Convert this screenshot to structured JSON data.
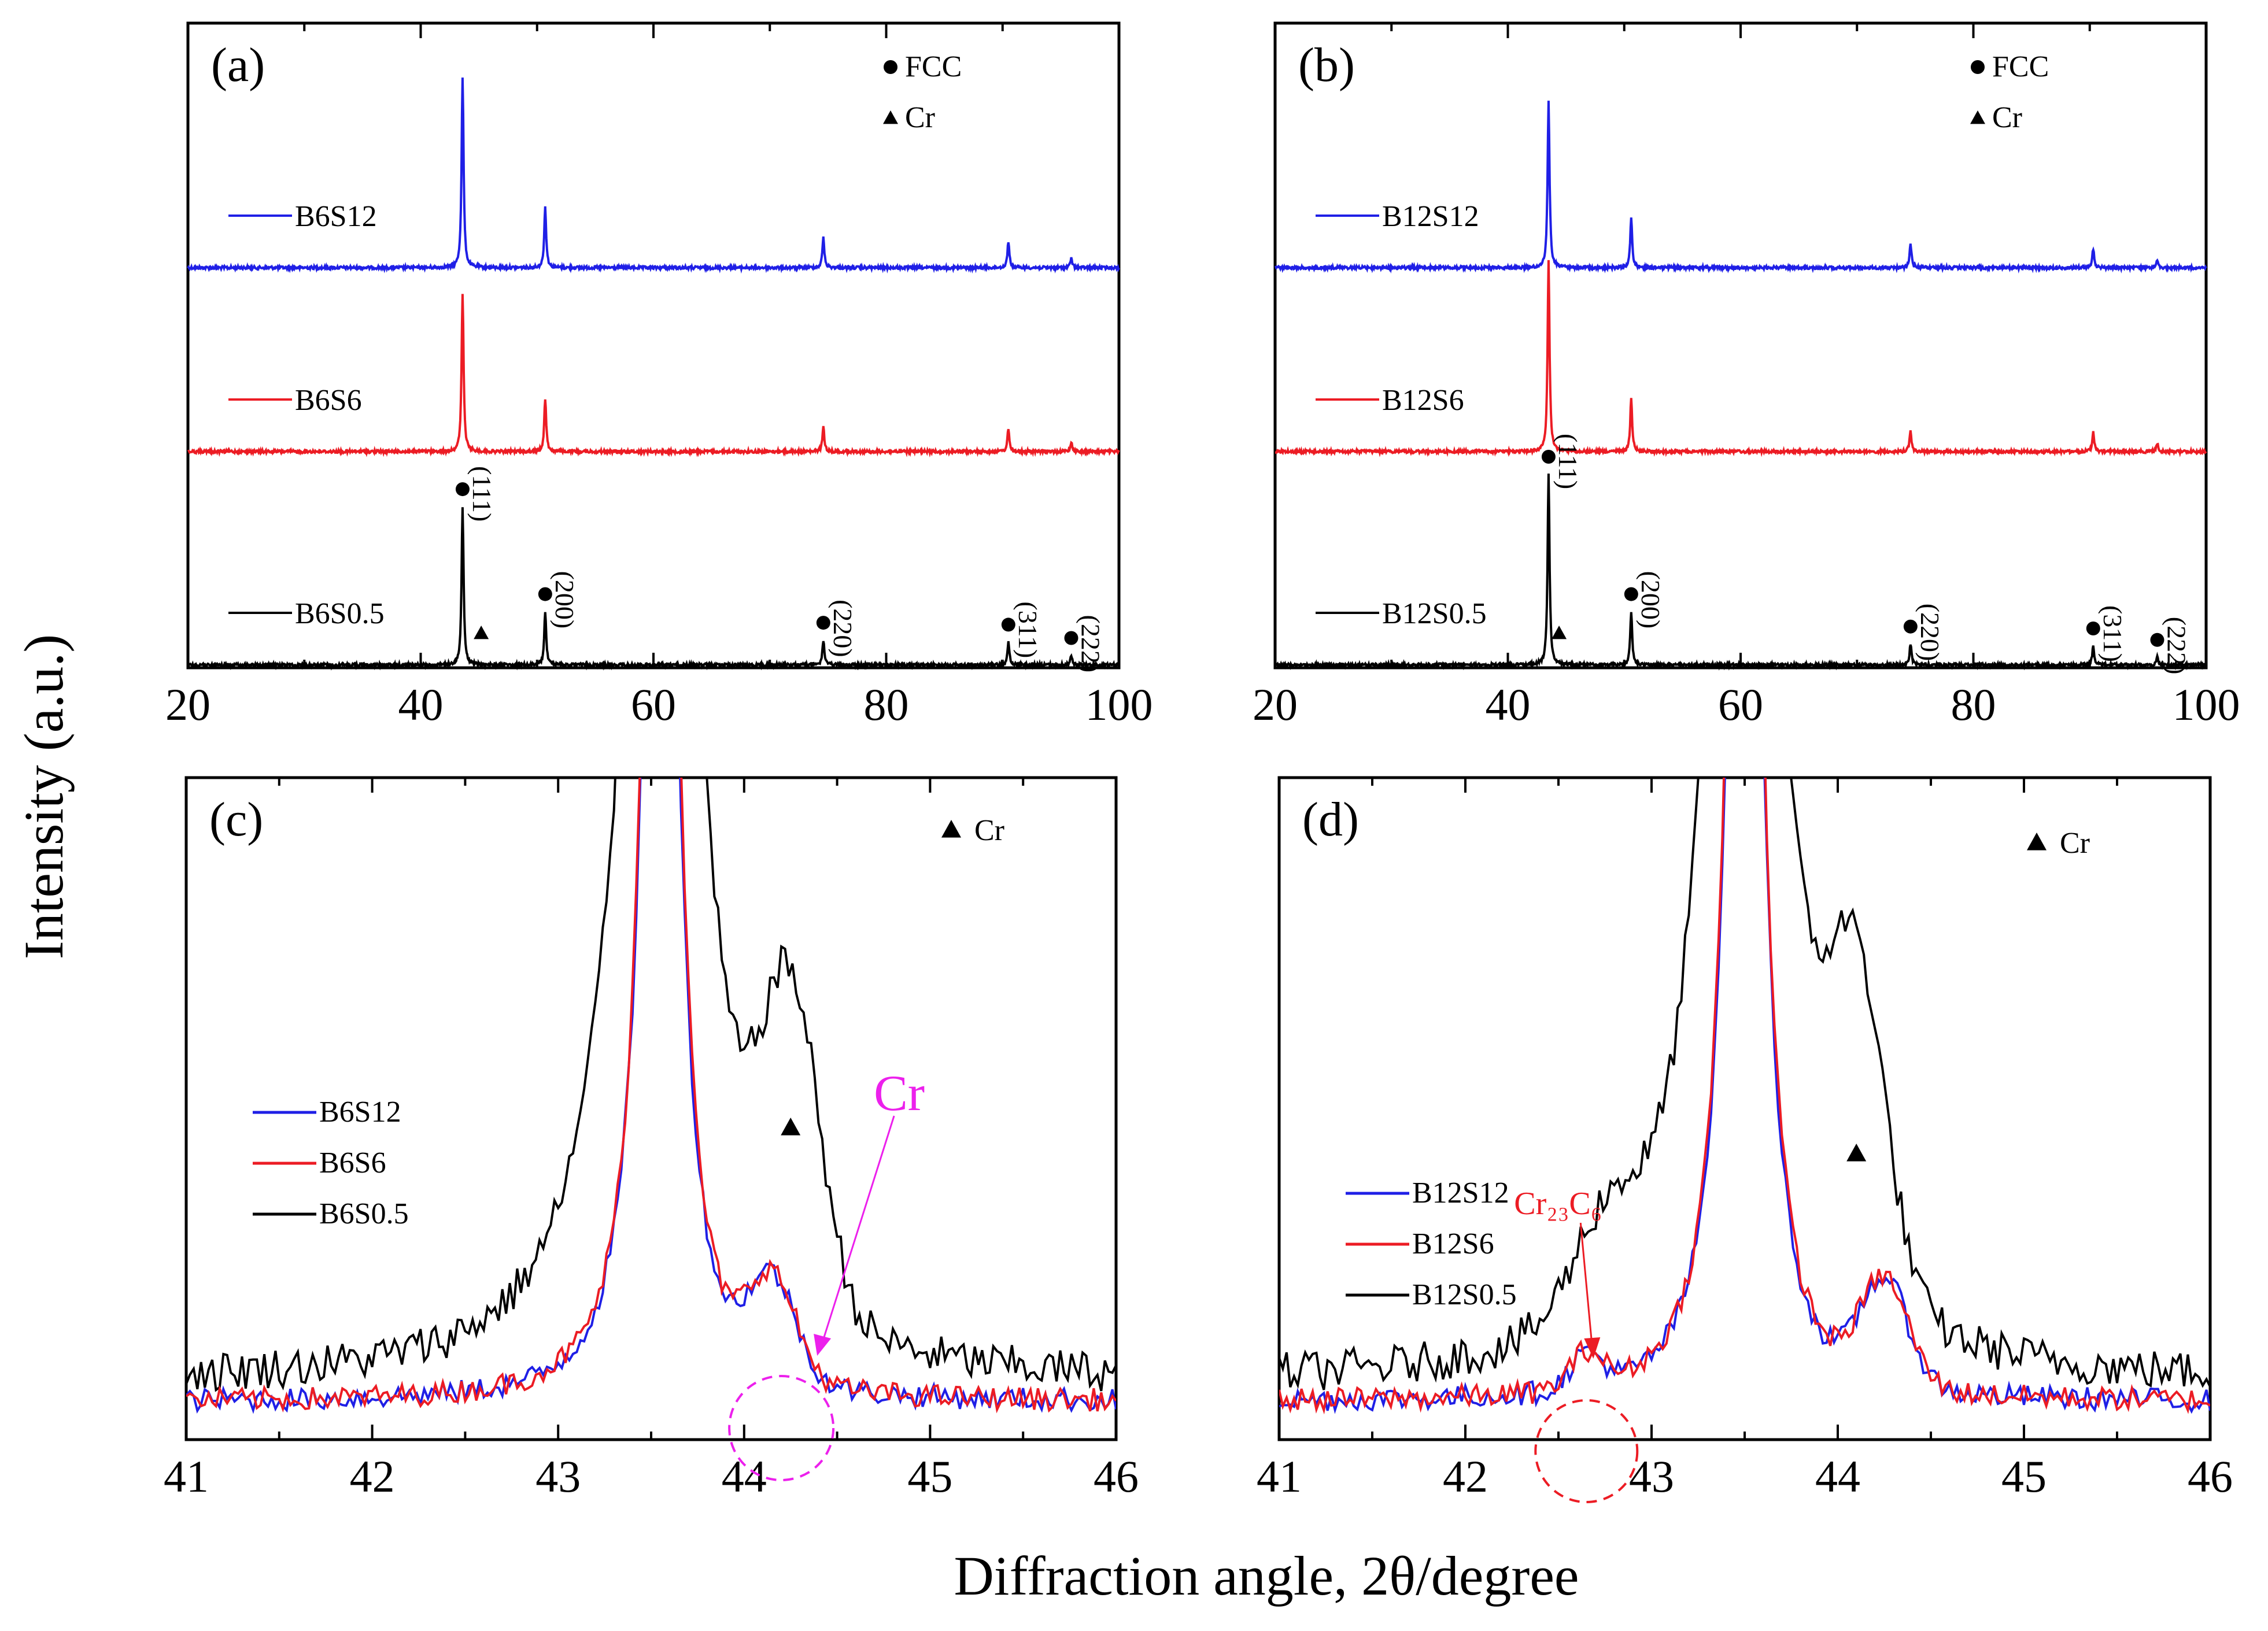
{
  "figure": {
    "ylabel": "Intensity (a.u.)",
    "xlabel": "Diffraction angle, 2θ/degree"
  },
  "colors": {
    "blue": "#1f1fe6",
    "red": "#ec1c24",
    "black": "#000000",
    "magenta": "#ec20ec",
    "cr23c6": "#ec1c24"
  },
  "chart_data": [
    {
      "id": "a",
      "type": "line",
      "panel_label": "(a)",
      "xlim": [
        20,
        100
      ],
      "xticks": [
        "20",
        "40",
        "60",
        "80",
        "100"
      ],
      "legend": [
        {
          "marker": "circle",
          "label": "FCC"
        },
        {
          "marker": "triangle",
          "label": "Cr"
        }
      ],
      "series": [
        {
          "name": "B6S12",
          "color": "blue",
          "offset": 2,
          "peaks": [
            [
              43.6,
              1.0
            ],
            [
              50.7,
              0.32
            ],
            [
              74.6,
              0.16
            ],
            [
              90.5,
              0.14
            ],
            [
              95.9,
              0.05
            ]
          ]
        },
        {
          "name": "B6S6",
          "color": "red",
          "offset": 1,
          "peaks": [
            [
              43.6,
              0.83
            ],
            [
              50.7,
              0.28
            ],
            [
              74.6,
              0.13
            ],
            [
              90.5,
              0.12
            ],
            [
              95.9,
              0.05
            ]
          ]
        },
        {
          "name": "B6S0.5",
          "color": "black",
          "offset": 0,
          "peaks": [
            [
              43.6,
              0.83
            ],
            [
              50.7,
              0.28
            ],
            [
              74.6,
              0.13
            ],
            [
              90.5,
              0.12
            ],
            [
              95.9,
              0.05
            ]
          ]
        }
      ],
      "fcc_peaks": [
        {
          "x": 43.6,
          "hkl": "(111)"
        },
        {
          "x": 50.7,
          "hkl": "(200)"
        },
        {
          "x": 74.6,
          "hkl": "(220)"
        },
        {
          "x": 90.5,
          "hkl": "(311)"
        },
        {
          "x": 95.9,
          "hkl": "(222)"
        }
      ],
      "cr_peaks": [
        {
          "x": 45.2
        }
      ]
    },
    {
      "id": "b",
      "type": "line",
      "panel_label": "(b)",
      "xlim": [
        20,
        100
      ],
      "xticks": [
        "20",
        "40",
        "60",
        "80",
        "100"
      ],
      "legend": [
        {
          "marker": "circle",
          "label": "FCC"
        },
        {
          "marker": "triangle",
          "label": "Cr"
        }
      ],
      "series": [
        {
          "name": "B12S12",
          "color": "blue",
          "offset": 2,
          "peaks": [
            [
              43.5,
              0.88
            ],
            [
              50.6,
              0.26
            ],
            [
              74.6,
              0.13
            ],
            [
              90.3,
              0.1
            ],
            [
              95.8,
              0.04
            ]
          ]
        },
        {
          "name": "B12S6",
          "color": "red",
          "offset": 1,
          "peaks": [
            [
              43.5,
              1.0
            ],
            [
              50.6,
              0.28
            ],
            [
              74.6,
              0.11
            ],
            [
              90.3,
              0.1
            ],
            [
              95.8,
              0.04
            ]
          ]
        },
        {
          "name": "B12S0.5",
          "color": "black",
          "offset": 0,
          "peaks": [
            [
              43.5,
              1.0
            ],
            [
              50.6,
              0.28
            ],
            [
              74.6,
              0.11
            ],
            [
              90.3,
              0.1
            ],
            [
              95.8,
              0.04
            ]
          ]
        }
      ],
      "fcc_peaks": [
        {
          "x": 43.5,
          "hkl": "(111)"
        },
        {
          "x": 50.6,
          "hkl": "(200)"
        },
        {
          "x": 74.6,
          "hkl": "(220)"
        },
        {
          "x": 90.3,
          "hkl": "(311)"
        },
        {
          "x": 95.8,
          "hkl": "(222)"
        }
      ],
      "cr_peaks": [
        {
          "x": 44.4
        }
      ]
    },
    {
      "id": "c",
      "type": "line",
      "panel_label": "(c)",
      "xlim": [
        41,
        46
      ],
      "xticks": [
        "41",
        "42",
        "43",
        "44",
        "45",
        "46"
      ],
      "legend": [
        {
          "marker": "triangle",
          "label": "Cr"
        }
      ],
      "series": [
        {
          "name": "B6S12",
          "color": "blue"
        },
        {
          "name": "B6S6",
          "color": "red"
        },
        {
          "name": "B6S0.5",
          "color": "black"
        }
      ],
      "cr_peaks": [
        {
          "x": 44.25
        }
      ],
      "annotation": {
        "text": "Cr",
        "color": "magenta",
        "circle_center_x": 44.2
      }
    },
    {
      "id": "d",
      "type": "line",
      "panel_label": "(d)",
      "xlim": [
        41,
        46
      ],
      "xticks": [
        "41",
        "42",
        "43",
        "44",
        "45",
        "46"
      ],
      "legend": [
        {
          "marker": "triangle",
          "label": "Cr"
        }
      ],
      "series": [
        {
          "name": "B12S12",
          "color": "blue"
        },
        {
          "name": "B12S6",
          "color": "red"
        },
        {
          "name": "B12S0.5",
          "color": "black"
        }
      ],
      "cr_peaks": [
        {
          "x": 44.1
        }
      ],
      "annotation": {
        "text": "Cr₂₃C₆",
        "color": "cr23c6",
        "circle_center_x": 42.65
      }
    }
  ]
}
